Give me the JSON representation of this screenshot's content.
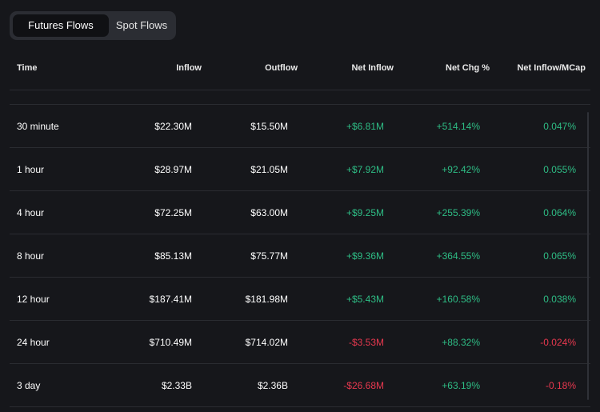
{
  "tabs": [
    {
      "label": "Futures Flows",
      "active": true
    },
    {
      "label": "Spot Flows",
      "active": false
    }
  ],
  "columns": {
    "time": "Time",
    "inflow": "Inflow",
    "outflow": "Outflow",
    "net_inflow": "Net Inflow",
    "net_chg": "Net Chg %",
    "net_inflow_mcap": "Net Inflow/MCap"
  },
  "rows": [
    {
      "time": "30 minute",
      "inflow": "$22.30M",
      "outflow": "$15.50M",
      "net_inflow": "+$6.81M",
      "net_chg": "+514.14%",
      "mcap": "0.047%",
      "sign": "pos",
      "chg_sign": "pos"
    },
    {
      "time": "1 hour",
      "inflow": "$28.97M",
      "outflow": "$21.05M",
      "net_inflow": "+$7.92M",
      "net_chg": "+92.42%",
      "mcap": "0.055%",
      "sign": "pos",
      "chg_sign": "pos"
    },
    {
      "time": "4 hour",
      "inflow": "$72.25M",
      "outflow": "$63.00M",
      "net_inflow": "+$9.25M",
      "net_chg": "+255.39%",
      "mcap": "0.064%",
      "sign": "pos",
      "chg_sign": "pos"
    },
    {
      "time": "8 hour",
      "inflow": "$85.13M",
      "outflow": "$75.77M",
      "net_inflow": "+$9.36M",
      "net_chg": "+364.55%",
      "mcap": "0.065%",
      "sign": "pos",
      "chg_sign": "pos"
    },
    {
      "time": "12 hour",
      "inflow": "$187.41M",
      "outflow": "$181.98M",
      "net_inflow": "+$5.43M",
      "net_chg": "+160.58%",
      "mcap": "0.038%",
      "sign": "pos",
      "chg_sign": "pos"
    },
    {
      "time": "24 hour",
      "inflow": "$710.49M",
      "outflow": "$714.02M",
      "net_inflow": "-$3.53M",
      "net_chg": "+88.32%",
      "mcap": "-0.024%",
      "sign": "neg",
      "chg_sign": "pos"
    },
    {
      "time": "3 day",
      "inflow": "$2.33B",
      "outflow": "$2.36B",
      "net_inflow": "-$26.68M",
      "net_chg": "+63.19%",
      "mcap": "-0.18%",
      "sign": "neg",
      "chg_sign": "pos"
    }
  ],
  "colors": {
    "positive": "#2ebd85",
    "negative": "#e8384f"
  }
}
